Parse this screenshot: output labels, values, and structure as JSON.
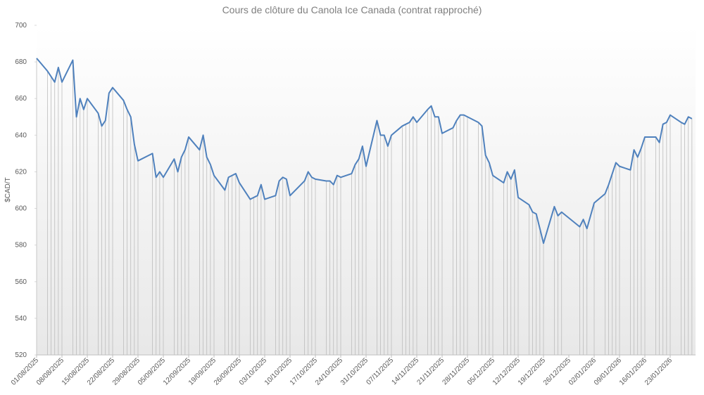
{
  "chart_data": {
    "type": "line",
    "title": "Cours de clôture du Canola Ice Canada (contrat rapproché)",
    "y_label": "$CAD/T",
    "color": "#4f81bd",
    "drop_lines": true,
    "ylim": [
      520,
      700
    ],
    "yticks": [
      520,
      540,
      560,
      580,
      600,
      620,
      640,
      660,
      680,
      700
    ],
    "xlim": [
      "01/08/2025",
      "30/01/2026"
    ],
    "xticks": [
      "01/08/2025",
      "08/08/2025",
      "15/08/2025",
      "22/08/2025",
      "29/08/2025",
      "05/09/2025",
      "12/09/2025",
      "19/09/2025",
      "26/09/2025",
      "03/10/2025",
      "10/10/2025",
      "17/10/2025",
      "24/10/2025",
      "31/10/2025",
      "07/11/2025",
      "14/11/2025",
      "21/11/2025",
      "28/11/2025",
      "05/12/2025",
      "12/12/2025",
      "19/12/2025",
      "26/12/2025",
      "02/01/2026",
      "09/01/2026",
      "16/01/2026",
      "23/01/2026"
    ],
    "x": [
      "01/08/2025",
      "04/08/2025",
      "05/08/2025",
      "06/08/2025",
      "07/08/2025",
      "08/08/2025",
      "11/08/2025",
      "12/08/2025",
      "13/08/2025",
      "14/08/2025",
      "15/08/2025",
      "18/08/2025",
      "19/08/2025",
      "20/08/2025",
      "21/08/2025",
      "22/08/2025",
      "25/08/2025",
      "26/08/2025",
      "27/08/2025",
      "28/08/2025",
      "29/08/2025",
      "02/09/2025",
      "03/09/2025",
      "04/09/2025",
      "05/09/2025",
      "08/09/2025",
      "09/09/2025",
      "10/09/2025",
      "11/09/2025",
      "12/09/2025",
      "15/09/2025",
      "16/09/2025",
      "17/09/2025",
      "18/09/2025",
      "19/09/2025",
      "22/09/2025",
      "23/09/2025",
      "24/09/2025",
      "25/09/2025",
      "26/09/2025",
      "29/09/2025",
      "30/09/2025",
      "01/10/2025",
      "02/10/2025",
      "03/10/2025",
      "06/10/2025",
      "07/10/2025",
      "08/10/2025",
      "09/10/2025",
      "10/10/2025",
      "14/10/2025",
      "15/10/2025",
      "16/10/2025",
      "17/10/2025",
      "20/10/2025",
      "21/10/2025",
      "22/10/2025",
      "23/10/2025",
      "24/10/2025",
      "27/10/2025",
      "28/10/2025",
      "29/10/2025",
      "30/10/2025",
      "31/10/2025",
      "03/11/2025",
      "04/11/2025",
      "05/11/2025",
      "06/11/2025",
      "07/11/2025",
      "10/11/2025",
      "11/11/2025",
      "12/11/2025",
      "13/11/2025",
      "14/11/2025",
      "17/11/2025",
      "18/11/2025",
      "19/11/2025",
      "20/11/2025",
      "21/11/2025",
      "24/11/2025",
      "25/11/2025",
      "26/11/2025",
      "27/11/2025",
      "28/11/2025",
      "01/12/2025",
      "02/12/2025",
      "03/12/2025",
      "04/12/2025",
      "05/12/2025",
      "08/12/2025",
      "09/12/2025",
      "10/12/2025",
      "11/12/2025",
      "12/12/2025",
      "15/12/2025",
      "16/12/2025",
      "17/12/2025",
      "18/12/2025",
      "19/12/2025",
      "22/12/2025",
      "23/12/2025",
      "24/12/2025",
      "29/12/2025",
      "30/12/2025",
      "31/12/2025",
      "02/01/2026",
      "05/01/2026",
      "06/01/2026",
      "07/01/2026",
      "08/01/2026",
      "09/01/2026",
      "12/01/2026",
      "13/01/2026",
      "14/01/2026",
      "15/01/2026",
      "16/01/2026",
      "19/01/2026",
      "20/01/2026",
      "21/01/2026",
      "22/01/2026",
      "23/01/2026",
      "26/01/2026",
      "27/01/2026",
      "28/01/2026",
      "29/01/2026"
    ],
    "values": [
      682,
      675,
      672,
      669,
      677,
      669,
      681,
      650,
      660,
      654,
      660,
      652,
      645,
      648,
      663,
      666,
      659,
      654,
      650,
      635,
      626,
      630,
      617,
      620,
      617,
      627,
      620,
      628,
      632,
      639,
      632,
      640,
      628,
      624,
      618,
      610,
      617,
      618,
      619,
      614,
      605,
      606,
      607,
      613,
      605,
      607,
      615,
      617,
      616,
      607,
      615,
      620,
      617,
      616,
      615,
      615,
      613,
      618,
      617,
      619,
      624,
      627,
      634,
      623,
      648,
      640,
      640,
      634,
      640,
      645,
      646,
      647,
      650,
      647,
      654,
      656,
      650,
      650,
      641,
      644,
      648,
      651,
      651,
      650,
      647,
      645,
      629,
      625,
      618,
      614,
      620,
      616,
      621,
      606,
      602,
      598,
      597,
      589,
      581,
      601,
      596,
      598,
      590,
      594,
      589,
      603,
      608,
      613,
      619,
      625,
      623,
      621,
      632,
      628,
      633,
      639,
      639,
      636,
      646,
      647,
      651,
      647,
      646,
      650,
      649
    ]
  }
}
